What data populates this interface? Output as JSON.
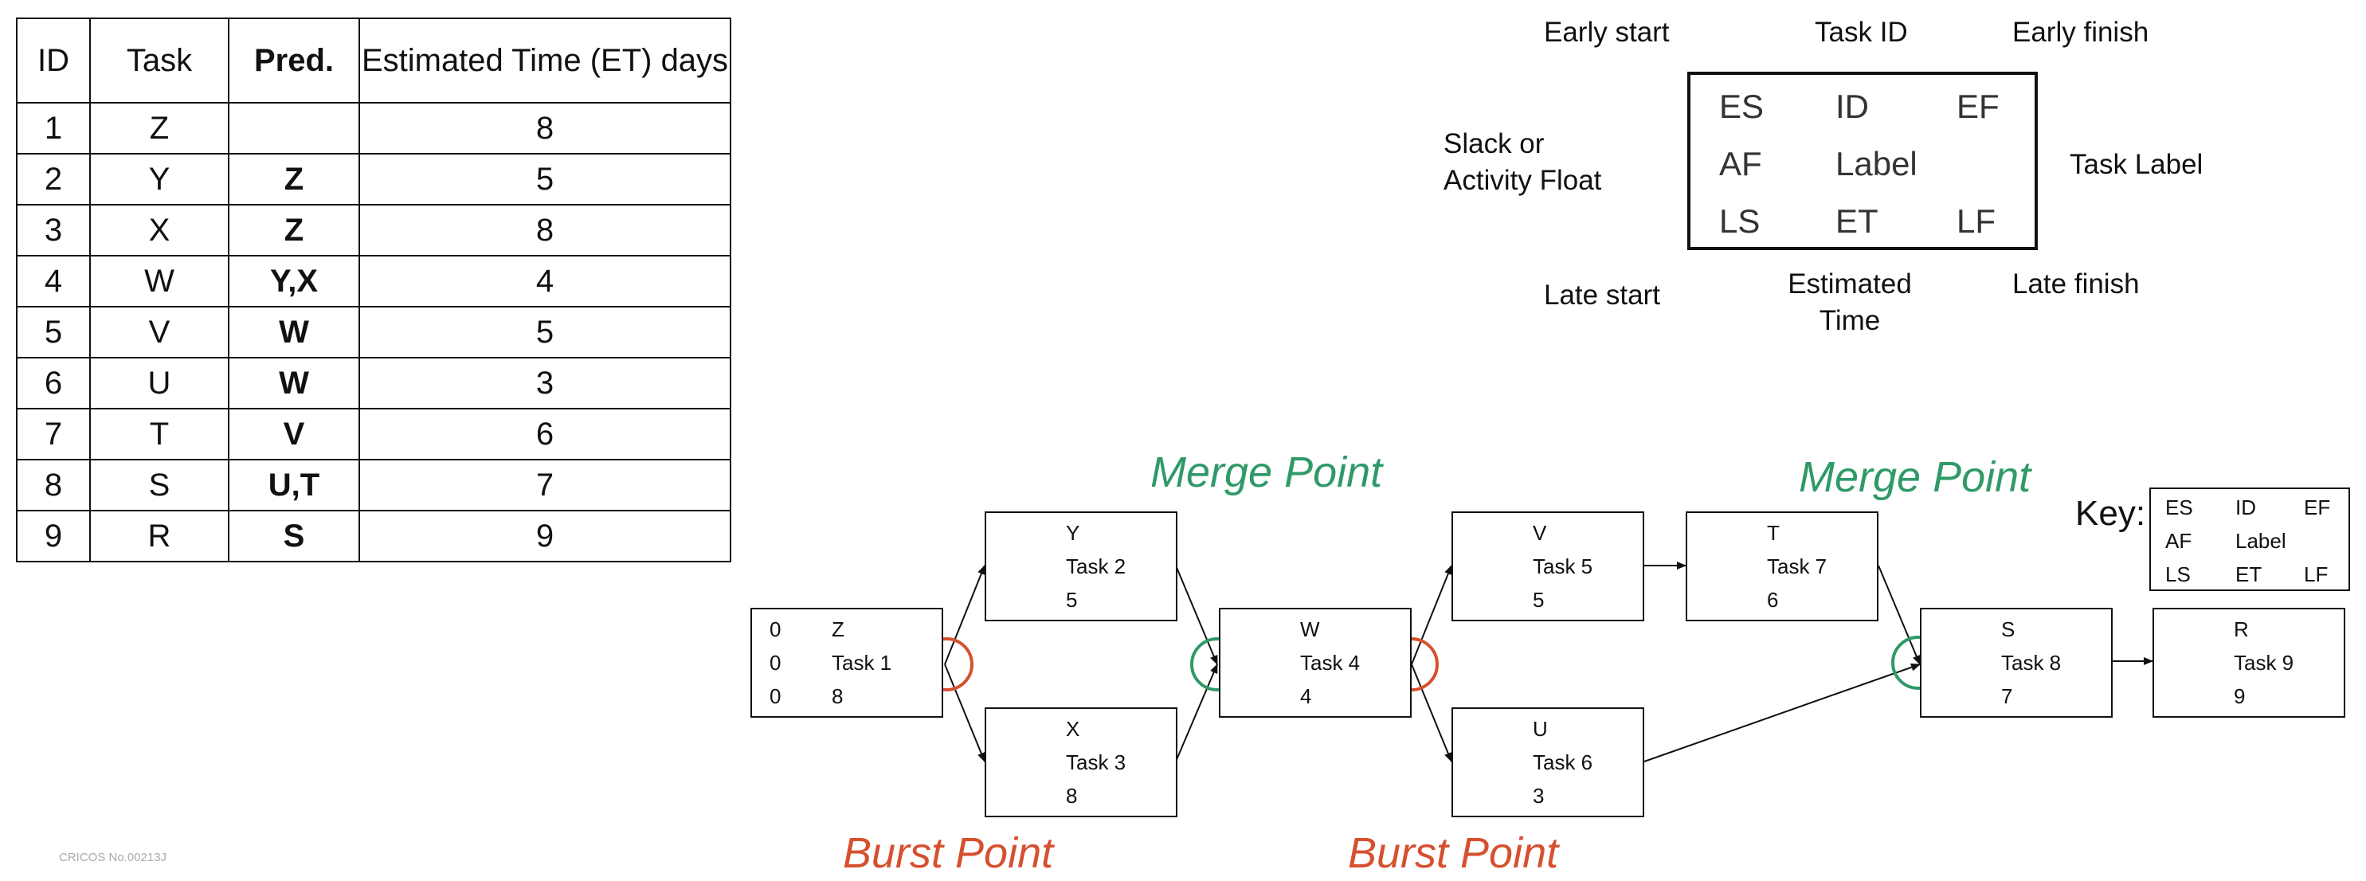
{
  "table": {
    "headers": {
      "id": "ID",
      "task": "Task",
      "pred": "Pred.",
      "et": "Estimated Time (ET) days"
    },
    "rows": [
      {
        "id": "1",
        "task": "Z",
        "pred": "",
        "et": "8"
      },
      {
        "id": "2",
        "task": "Y",
        "pred": "Z",
        "et": "5"
      },
      {
        "id": "3",
        "task": "X",
        "pred": "Z",
        "et": "8"
      },
      {
        "id": "4",
        "task": "W",
        "pred": "Y,X",
        "et": "4"
      },
      {
        "id": "5",
        "task": "V",
        "pred": "W",
        "et": "5"
      },
      {
        "id": "6",
        "task": "U",
        "pred": "W",
        "et": "3"
      },
      {
        "id": "7",
        "task": "T",
        "pred": "V",
        "et": "6"
      },
      {
        "id": "8",
        "task": "S",
        "pred": "U,T",
        "et": "7"
      },
      {
        "id": "9",
        "task": "R",
        "pred": "S",
        "et": "9"
      }
    ]
  },
  "legend": {
    "early_start": "Early start",
    "task_id": "Task ID",
    "early_finish": "Early finish",
    "slack_line1": "Slack or",
    "slack_line2": "Activity Float",
    "task_label": "Task Label",
    "late_start": "Late start",
    "estimated_line1": "Estimated",
    "estimated_line2": "Time",
    "late_finish": "Late finish",
    "box": {
      "es": "ES",
      "id": "ID",
      "ef": "EF",
      "af": "AF",
      "label": "Label",
      "ls": "LS",
      "et": "ET",
      "lf": "LF"
    }
  },
  "nodes": {
    "z": {
      "es": "0",
      "af": "0",
      "ls": "0",
      "id": "Z",
      "label": "Task 1",
      "et": "8"
    },
    "y": {
      "id": "Y",
      "label": "Task 2",
      "et": "5"
    },
    "x": {
      "id": "X",
      "label": "Task 3",
      "et": "8"
    },
    "w": {
      "id": "W",
      "label": "Task 4",
      "et": "4"
    },
    "v": {
      "id": "V",
      "label": "Task 5",
      "et": "5"
    },
    "u": {
      "id": "U",
      "label": "Task 6",
      "et": "3"
    },
    "t": {
      "id": "T",
      "label": "Task 7",
      "et": "6"
    },
    "s": {
      "id": "S",
      "label": "Task 8",
      "et": "7"
    },
    "r": {
      "id": "R",
      "label": "Task 9",
      "et": "9"
    }
  },
  "labels": {
    "merge_point": "Merge Point",
    "burst_point": "Burst Point"
  },
  "key": {
    "title": "Key:",
    "es": "ES",
    "id": "ID",
    "ef": "EF",
    "af": "AF",
    "label": "Label",
    "ls": "LS",
    "et": "ET",
    "lf": "LF"
  },
  "footer": {
    "cricos": "CRICOS No.00213J"
  },
  "colors": {
    "merge": "#2f9a68",
    "burst": "#d6502f"
  }
}
